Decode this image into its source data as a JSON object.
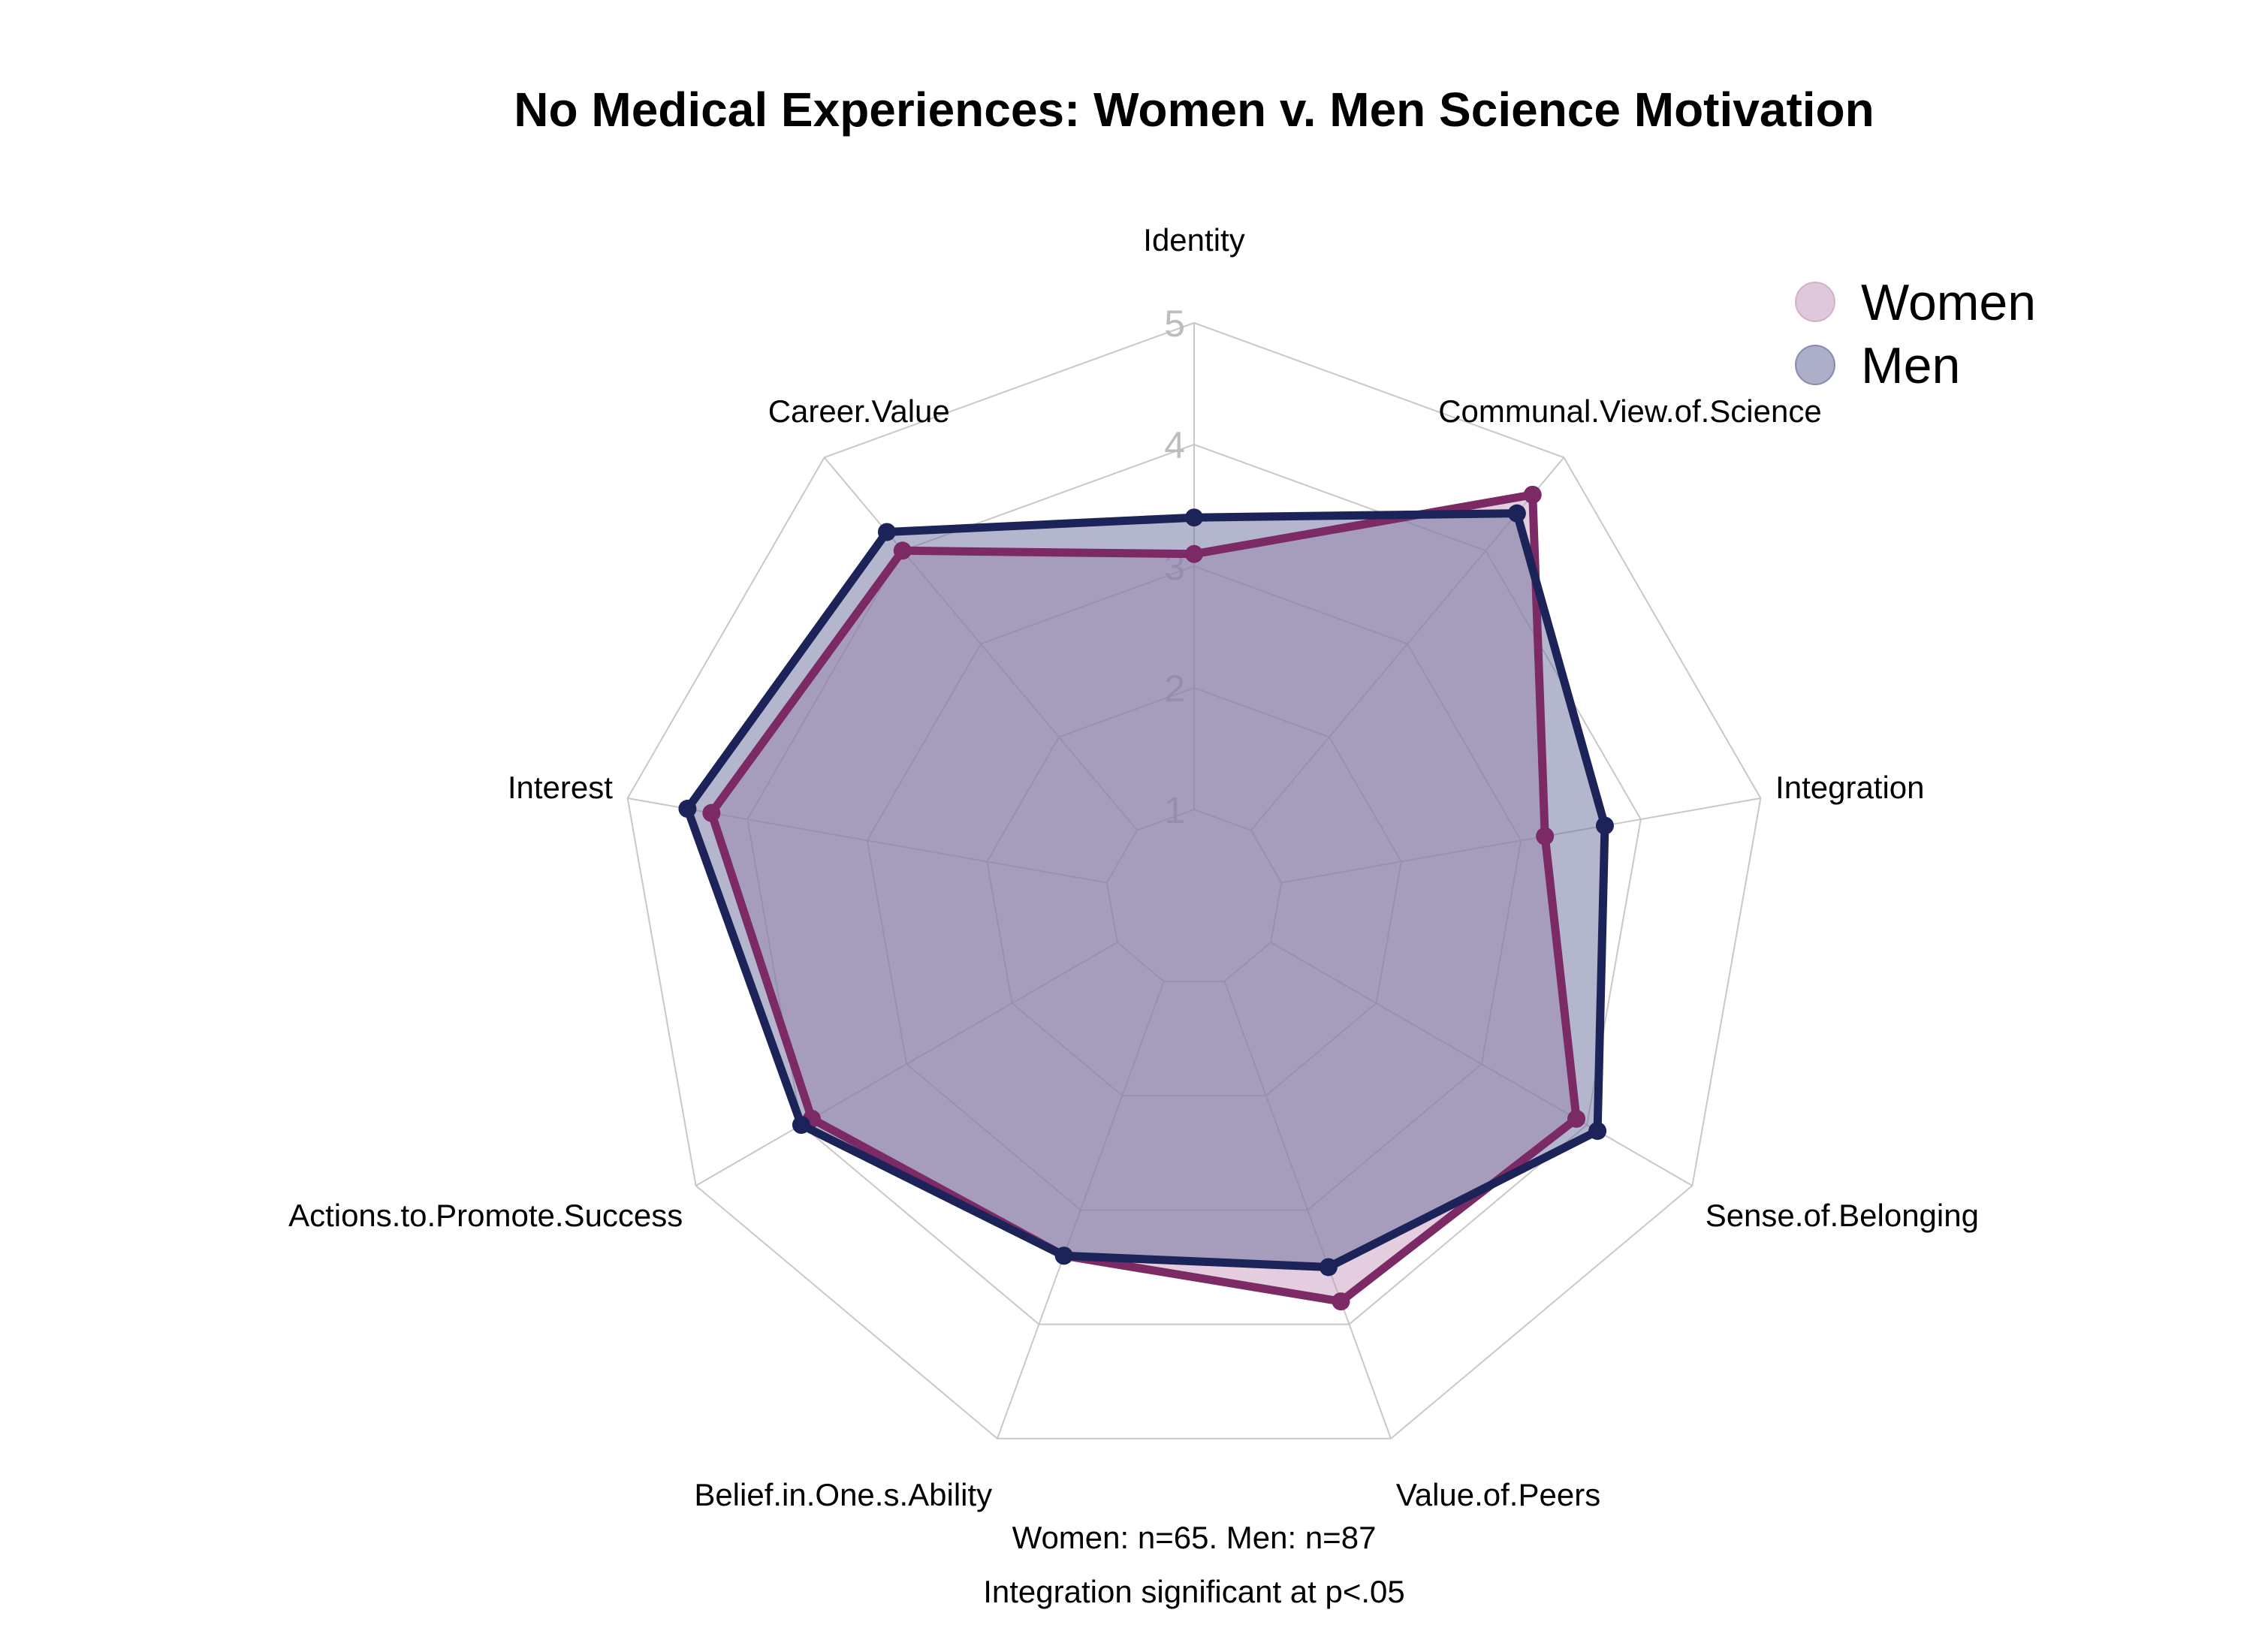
{
  "chart_data": {
    "type": "radar",
    "title": "No Medical Experiences: Women v. Men Science Motivation",
    "axes": [
      "Identity",
      "Communal.View.of.Science",
      "Integration",
      "Sense.of.Belonging",
      "Value.of.Peers",
      "Belief.in.One.s.Ability",
      "Actions.to.Promote.Success",
      "Interest",
      "Career.Value"
    ],
    "ticks": [
      "1",
      "2",
      "3",
      "4",
      "5"
    ],
    "range": [
      0,
      5
    ],
    "series": [
      {
        "name": "Women",
        "values": [
          3.1,
          4.6,
          3.2,
          3.9,
          3.8,
          3.4,
          3.9,
          4.3,
          4.0
        ],
        "color": "#7b2a65",
        "fill": "#c79bbd"
      },
      {
        "name": "Men",
        "values": [
          3.4,
          4.4,
          3.7,
          4.1,
          3.5,
          3.4,
          4.0,
          4.5,
          4.2
        ],
        "color": "#1c2358",
        "fill": "#6a6d9c"
      }
    ],
    "legend_position": "top-right",
    "caption": [
      "Women: n=65. Men: n=87",
      "Integration significant at p<.05"
    ]
  }
}
